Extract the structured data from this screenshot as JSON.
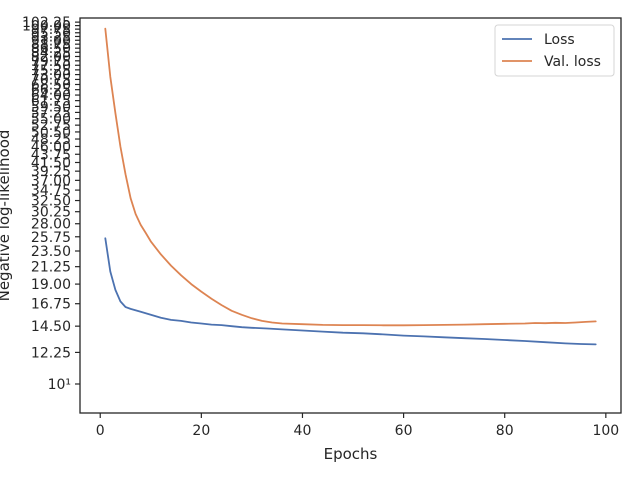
{
  "chart_data": {
    "type": "line",
    "title": "",
    "xlabel": "Epochs",
    "ylabel": "Negative log-likelihood",
    "xlim": [
      -4,
      103
    ],
    "xticks": [
      0,
      20,
      40,
      60,
      80,
      100
    ],
    "yscale": "log",
    "ylim": [
      8.3,
      105
    ],
    "ytick_labels": [
      "10¹",
      "12.25",
      "14.50",
      "16.75",
      "19.00",
      "21.25",
      "23.50",
      "25.75",
      "28.00",
      "30.25",
      "32.50",
      "34.75",
      "37.00",
      "39.25",
      "41.50",
      "43.75",
      "46.00",
      "48.25",
      "50.50",
      "52.75",
      "55.00",
      "57.25",
      "59.50",
      "61.75",
      "64.00",
      "66.25",
      "68.50",
      "70.75",
      "73.00",
      "75.25",
      "77.50",
      "79.75",
      "82.00",
      "84.25",
      "86.50",
      "88.75",
      "91.00",
      "93.25",
      "95.50",
      "97.75",
      "100.00",
      "102.25"
    ],
    "ytick_values": [
      10,
      12.25,
      14.5,
      16.75,
      19,
      21.25,
      23.5,
      25.75,
      28,
      30.25,
      32.5,
      34.75,
      37,
      39.25,
      41.5,
      43.75,
      46,
      48.25,
      50.5,
      52.75,
      55,
      57.25,
      59.5,
      61.75,
      64,
      66.25,
      68.5,
      70.75,
      73,
      75.25,
      77.5,
      79.75,
      82,
      84.25,
      86.5,
      88.75,
      91,
      93.25,
      95.5,
      97.75,
      100,
      102.25
    ],
    "grid": false,
    "legend_position": "top-right",
    "series": [
      {
        "name": "Loss",
        "color": "#4c72b0",
        "x": [
          1,
          2,
          3,
          4,
          5,
          6,
          8,
          10,
          12,
          14,
          16,
          18,
          20,
          22,
          24,
          26,
          28,
          30,
          33,
          36,
          40,
          44,
          48,
          52,
          56,
          60,
          64,
          68,
          72,
          76,
          80,
          84,
          88,
          92,
          95,
          98
        ],
        "y": [
          25.5,
          20.6,
          18.3,
          17.0,
          16.4,
          16.2,
          15.9,
          15.6,
          15.3,
          15.1,
          15.0,
          14.85,
          14.75,
          14.65,
          14.6,
          14.5,
          14.4,
          14.35,
          14.28,
          14.2,
          14.1,
          14.0,
          13.9,
          13.85,
          13.75,
          13.65,
          13.58,
          13.5,
          13.42,
          13.35,
          13.27,
          13.18,
          13.08,
          12.98,
          12.93,
          12.9
        ]
      },
      {
        "name": "Val. loss",
        "color": "#dd8452",
        "x": [
          1,
          2,
          3,
          4,
          5,
          6,
          7,
          8,
          9,
          10,
          12,
          14,
          16,
          18,
          20,
          22,
          24,
          26,
          28,
          30,
          32,
          34,
          36,
          40,
          44,
          48,
          52,
          56,
          60,
          64,
          68,
          72,
          76,
          80,
          84,
          86,
          88,
          90,
          92,
          94,
          96,
          98
        ],
        "y": [
          98,
          72,
          57,
          46,
          38.5,
          33,
          29.8,
          27.8,
          26.4,
          25.0,
          23.0,
          21.4,
          20.1,
          19.0,
          18.1,
          17.3,
          16.6,
          16.0,
          15.6,
          15.25,
          15.0,
          14.85,
          14.75,
          14.68,
          14.62,
          14.6,
          14.6,
          14.58,
          14.58,
          14.6,
          14.62,
          14.65,
          14.68,
          14.72,
          14.75,
          14.8,
          14.78,
          14.82,
          14.8,
          14.85,
          14.9,
          14.95
        ]
      }
    ]
  }
}
